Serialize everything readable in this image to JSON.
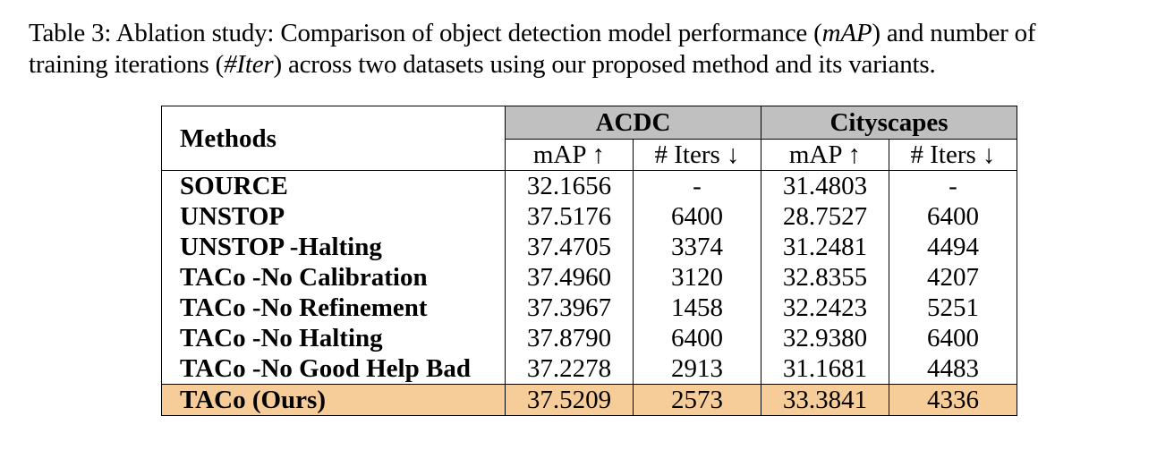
{
  "caption": {
    "label": "Table 3:",
    "line1_pre": "Ablation study: Comparison of object detection model performance (",
    "math1": "mAP",
    "line1_post": ") and number of",
    "line2_pre": "training iterations (",
    "math2": "#Iter",
    "line2_post": ") across two datasets using our proposed method and its variants."
  },
  "table": {
    "methods_header": "Methods",
    "groups": [
      "ACDC",
      "Cityscapes"
    ],
    "subheaders": [
      "mAP ↑",
      "# Iters ↓",
      "mAP ↑",
      "# Iters ↓"
    ],
    "rows": [
      {
        "method": "SOURCE",
        "acdc_map": "32.1656",
        "acdc_iters": "-",
        "city_map": "31.4803",
        "city_iters": "-"
      },
      {
        "method": "UNSTOP",
        "acdc_map": "37.5176",
        "acdc_iters": "6400",
        "city_map": "28.7527",
        "city_iters": "6400"
      },
      {
        "method": "UNSTOP -Halting",
        "acdc_map": "37.4705",
        "acdc_iters": "3374",
        "city_map": "31.2481",
        "city_iters": "4494"
      },
      {
        "method": "TACo -No Calibration",
        "acdc_map": "37.4960",
        "acdc_iters": "3120",
        "city_map": "32.8355",
        "city_iters": "4207"
      },
      {
        "method": "TACo -No Refinement",
        "acdc_map": "37.3967",
        "acdc_iters": "1458",
        "city_map": "32.2423",
        "city_iters": "5251"
      },
      {
        "method": "TACo -No Halting",
        "acdc_map": "37.8790",
        "acdc_iters": "6400",
        "city_map": "32.9380",
        "city_iters": "6400"
      },
      {
        "method": "TACo -No Good Help Bad",
        "acdc_map": "37.2278",
        "acdc_iters": "2913",
        "city_map": "31.1681",
        "city_iters": "4483"
      },
      {
        "method": "TACo (Ours)",
        "acdc_map": "37.5209",
        "acdc_iters": "2573",
        "city_map": "33.3841",
        "city_iters": "4336"
      }
    ],
    "highlight_color": "#f6cd99",
    "group_header_color": "#c0c0c0"
  }
}
